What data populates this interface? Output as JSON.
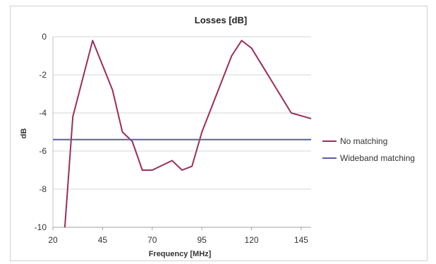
{
  "chart_data": {
    "type": "line",
    "title": "Losses [dB]",
    "xlabel": "Frequency [MHz]",
    "ylabel": "dB",
    "xlim": [
      20,
      150
    ],
    "ylim": [
      -10,
      0
    ],
    "xticks": [
      20,
      45,
      70,
      95,
      120,
      145
    ],
    "yticks": [
      0,
      -2,
      -4,
      -6,
      -8,
      -10
    ],
    "grid": true,
    "legend_position": "right",
    "series": [
      {
        "name": "No matching",
        "color": "#9b2d5b",
        "x": [
          26,
          30,
          40,
          50,
          55,
          60,
          65,
          70,
          80,
          85,
          90,
          95,
          110,
          115,
          120,
          130,
          140,
          150
        ],
        "y": [
          -10,
          -4.2,
          -0.2,
          -2.8,
          -5.0,
          -5.5,
          -7.0,
          -7.0,
          -6.5,
          -7.0,
          -6.8,
          -5.0,
          -1.0,
          -0.2,
          -0.6,
          -2.3,
          -4.0,
          -4.3
        ]
      },
      {
        "name": "Wideband matching",
        "color": "#5b5fa8",
        "x": [
          20,
          150
        ],
        "y": [
          -5.4,
          -5.4
        ]
      }
    ]
  }
}
